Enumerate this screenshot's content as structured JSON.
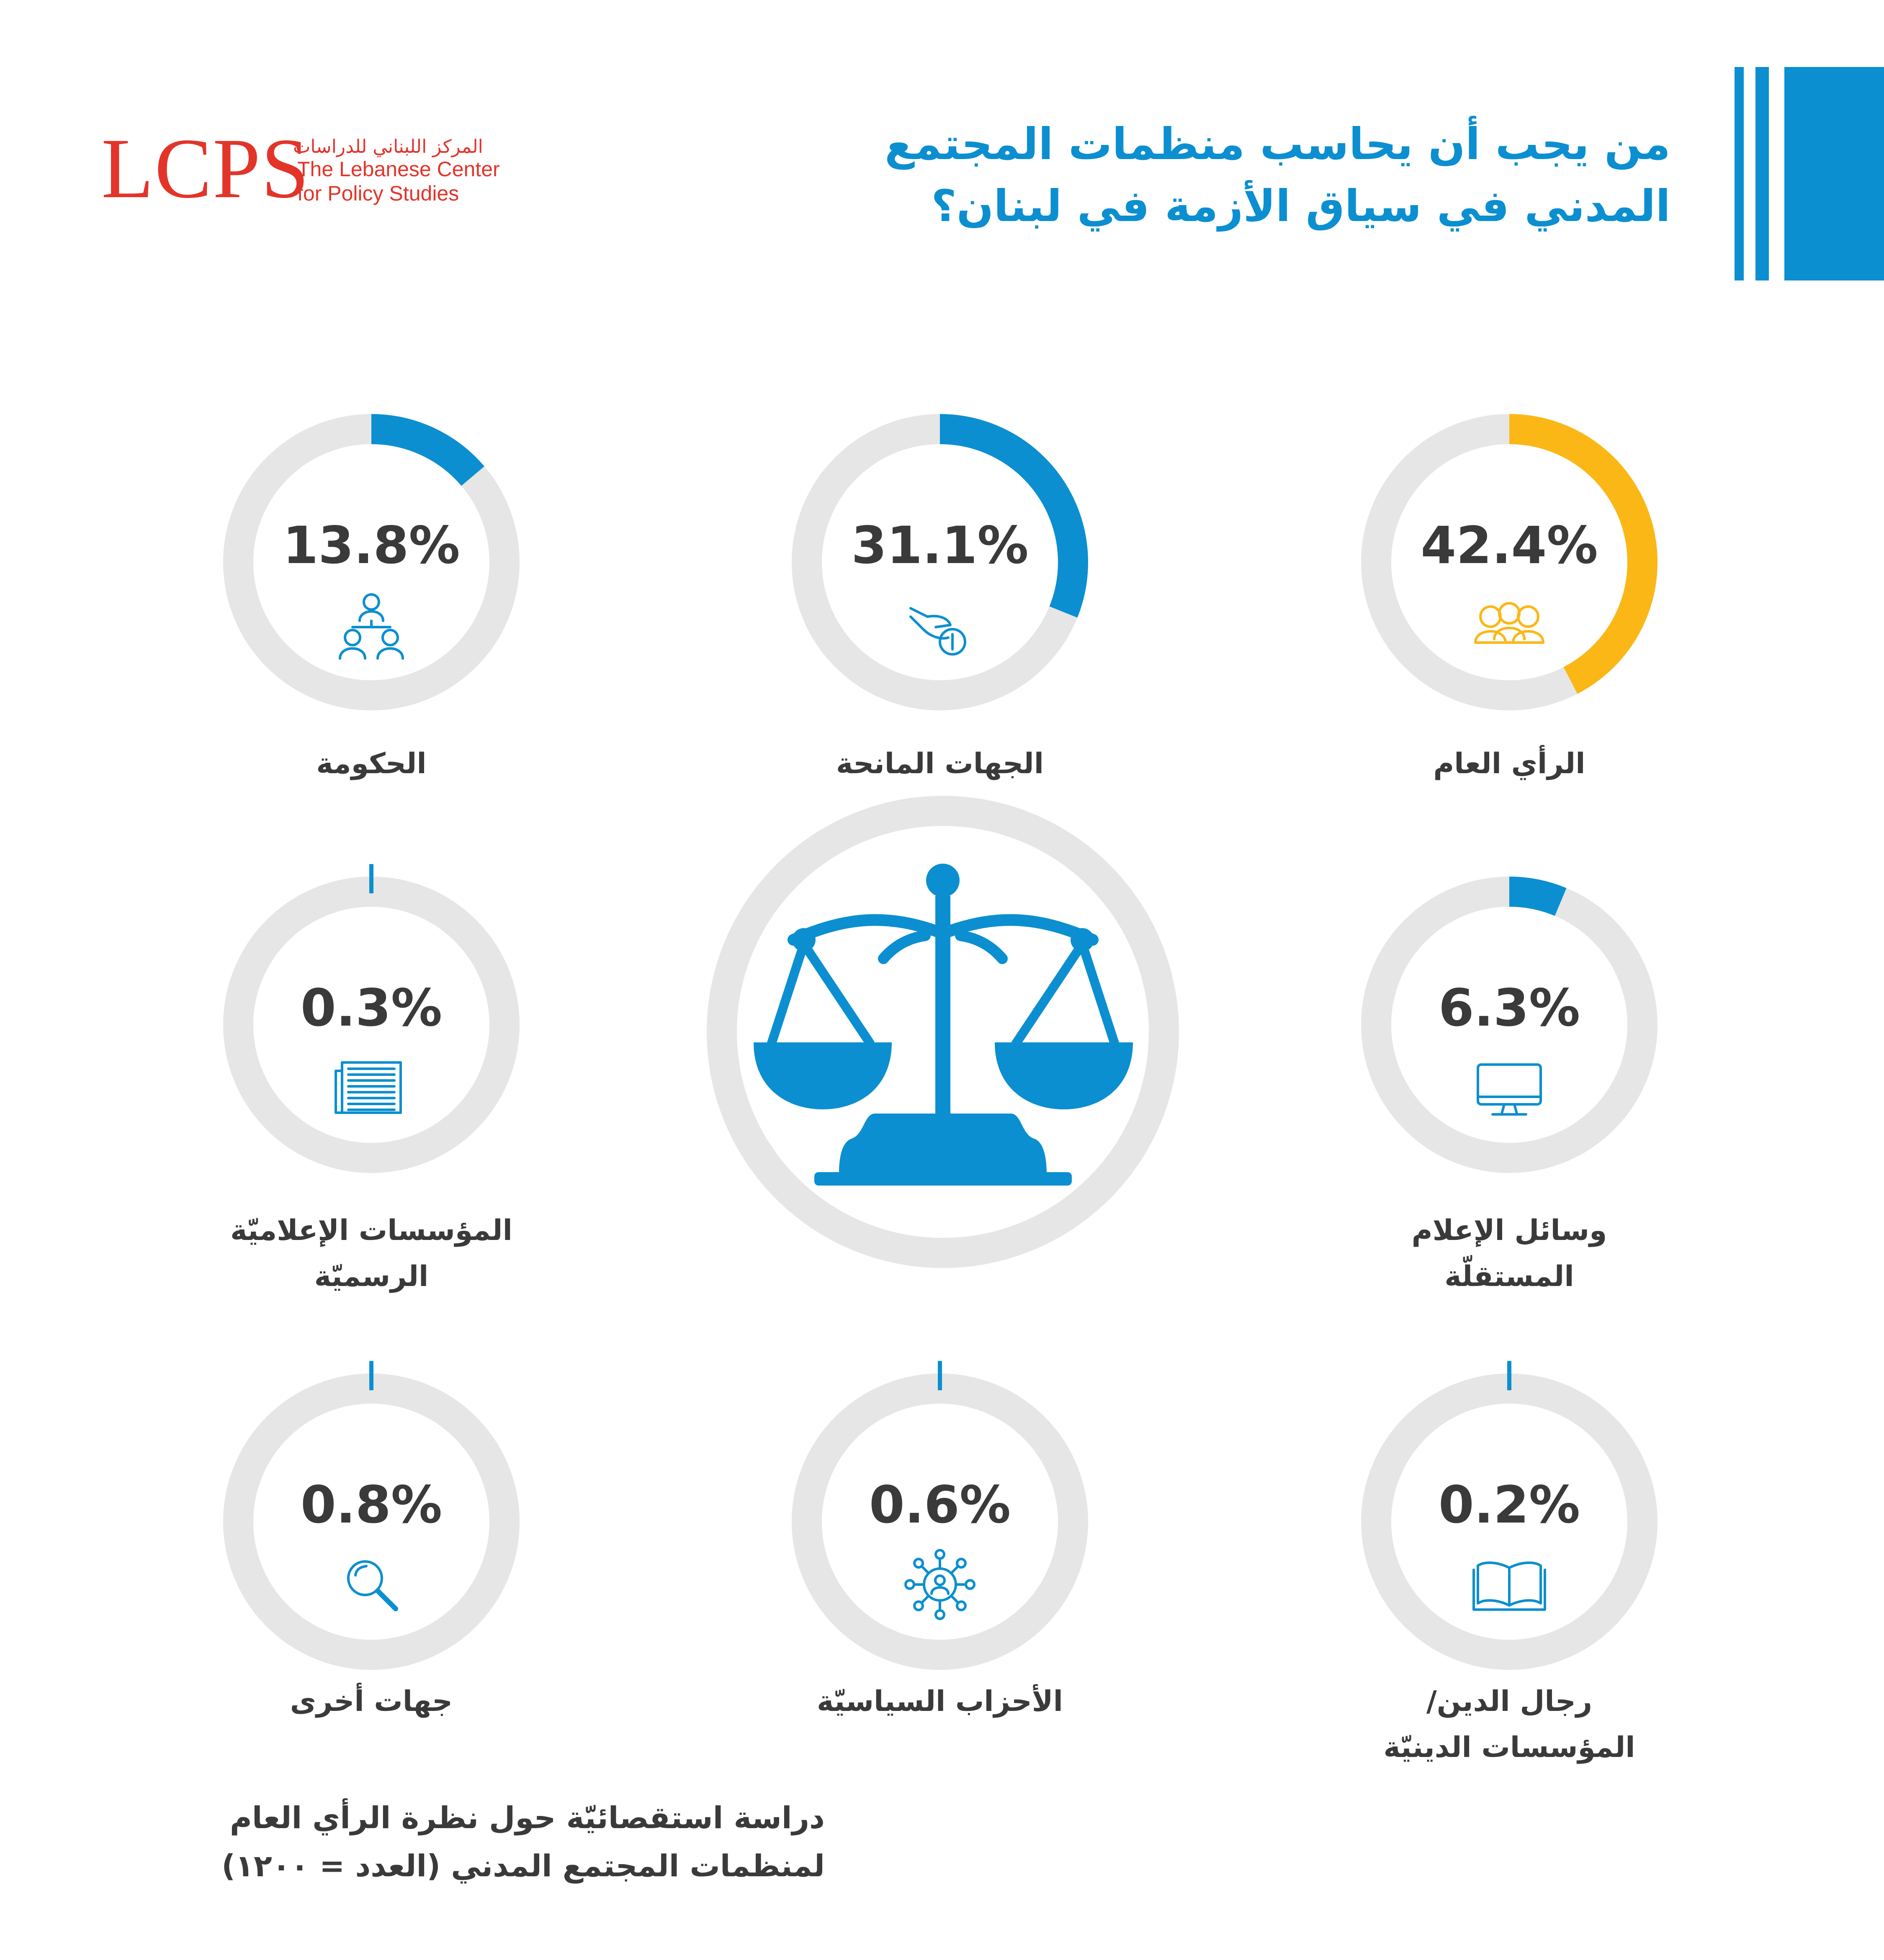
{
  "logo": {
    "mark": "LCPS",
    "arabic": "المركز اللبناني للدراسات",
    "english_line1": "The Lebanese Center",
    "english_line2": "for Policy Studies"
  },
  "header": {
    "title_line1": "من يجب أن يحاسب منظمات المجتمع",
    "title_line2": "المدني في سياق الأزمة في لبنان؟"
  },
  "colors": {
    "accent": "#0b8fd0",
    "highlight": "#fbb716",
    "track": "#e6e6e6",
    "text": "#3a3a3a",
    "brand": "#e3342a"
  },
  "center_icon": "scales-of-justice-icon",
  "chart_data": {
    "type": "donut",
    "title": "من يجب أن يحاسب منظمات المجتمع المدني في سياق الأزمة في لبنان؟",
    "unit": "%",
    "items": [
      {
        "label": "الرأي العام",
        "value": 42.4,
        "display": "42.4%",
        "icon": "group-of-people-icon",
        "color": "#fbb716"
      },
      {
        "label": "الجهات المانحة",
        "value": 31.1,
        "display": "31.1%",
        "icon": "hand-giving-money-icon",
        "color": "#0b8fd0"
      },
      {
        "label": "الحكومة",
        "value": 13.8,
        "display": "13.8%",
        "icon": "hierarchy-people-icon",
        "color": "#0b8fd0"
      },
      {
        "label": "وسائل الإعلام المستقلّة",
        "label_line1": "وسائل الإعلام",
        "label_line2": "المستقلّة",
        "value": 6.3,
        "display": "6.3%",
        "icon": "computer-monitor-icon",
        "color": "#0b8fd0"
      },
      {
        "label": "المؤسسات الإعلاميّة الرسميّة",
        "label_line1": "المؤسسات الإعلاميّة",
        "label_line2": "الرسميّة",
        "value": 0.3,
        "display": "0.3%",
        "icon": "newspaper-icon",
        "color": "#0b8fd0"
      },
      {
        "label": "رجال الدين/ المؤسسات الدينيّة",
        "label_line1": "رجال الدين/",
        "label_line2": "المؤسسات الدينيّة",
        "value": 0.2,
        "display": "0.2%",
        "icon": "open-book-icon",
        "color": "#0b8fd0"
      },
      {
        "label": "الأحزاب السياسيّة",
        "value": 0.6,
        "display": "0.6%",
        "icon": "network-person-icon",
        "color": "#0b8fd0"
      },
      {
        "label": "جهات أخرى",
        "value": 0.8,
        "display": "0.8%",
        "icon": "magnifying-glass-icon",
        "color": "#0b8fd0"
      }
    ]
  },
  "footer": {
    "line1": "دراسة استقصائيّة حول نظرة الرأي العام",
    "line2": "لمنظمات المجتمع المدني (العدد = ١٢٠٠)"
  }
}
